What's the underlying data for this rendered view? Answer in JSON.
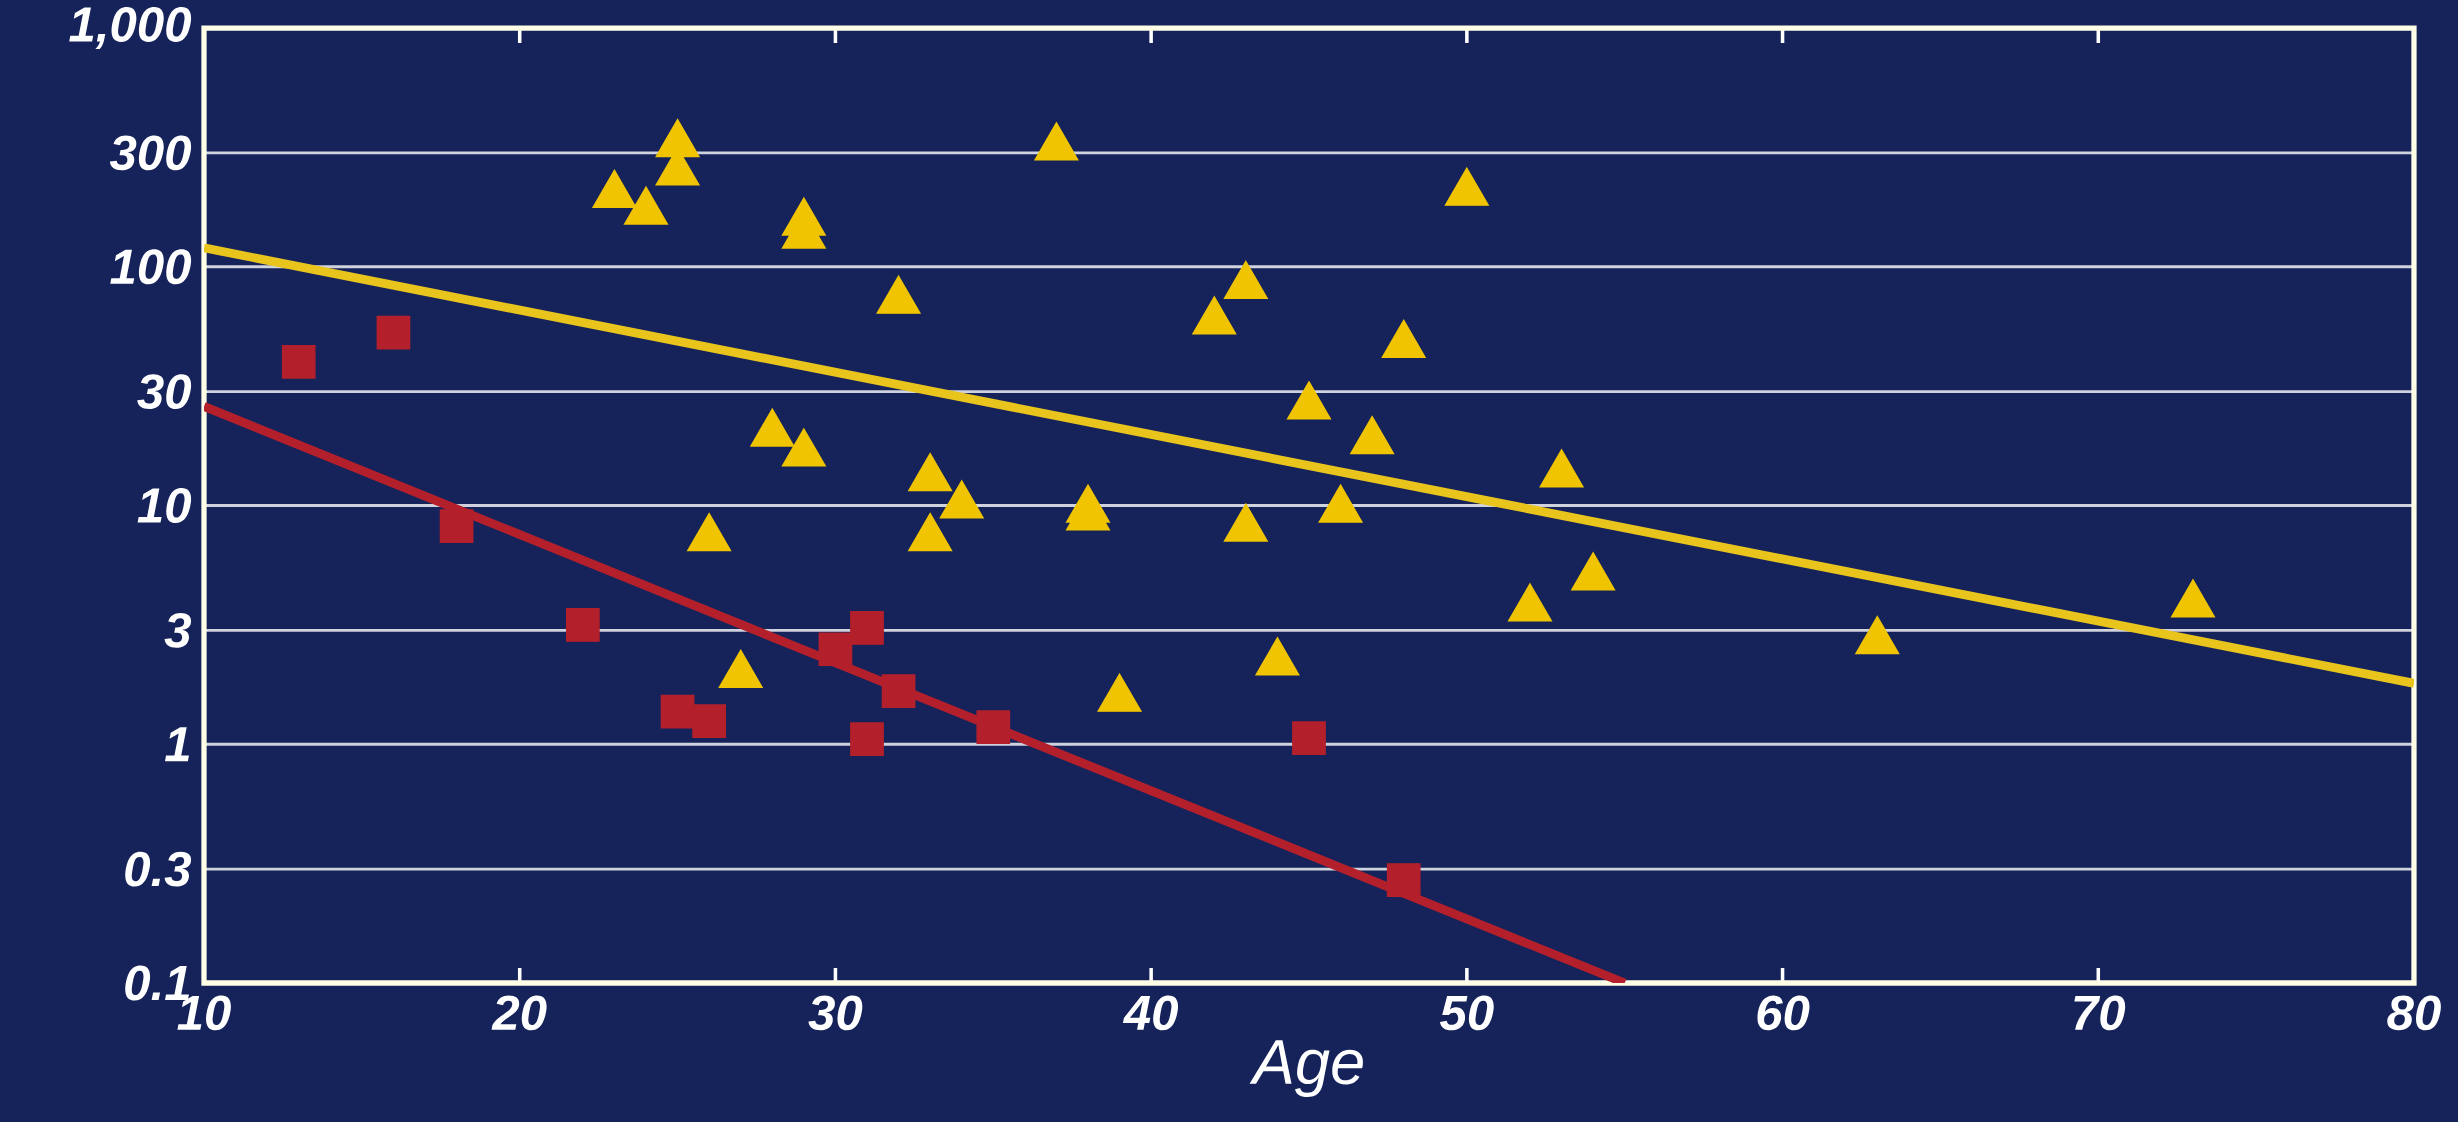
{
  "chart_data": {
    "type": "scatter",
    "xlabel": "Age",
    "xlim": [
      10,
      80
    ],
    "xticks": [
      10,
      20,
      30,
      40,
      50,
      60,
      70,
      80
    ],
    "ylim": [
      0.1,
      1000
    ],
    "yticks": [
      0.1,
      0.3,
      1,
      3,
      10,
      30,
      100,
      300,
      {
        "value": 1000,
        "label": "1,000"
      }
    ],
    "log": "y",
    "grid": "y",
    "series": [
      {
        "marker": "triangle",
        "color": "#f0c400",
        "x": [
          25,
          25,
          23,
          24,
          29,
          29,
          37,
          50,
          32,
          42,
          43,
          48,
          45,
          47,
          28,
          29,
          33,
          34,
          38,
          38,
          53,
          46,
          26,
          33,
          43,
          54,
          52,
          73,
          63,
          44,
          27,
          39
        ],
        "values": [
          326,
          248,
          200,
          170,
          153,
          135,
          316,
          204,
          72,
          59,
          83,
          47,
          26,
          18.6,
          20,
          16.5,
          13,
          10,
          9.6,
          8.9,
          13.5,
          9.6,
          7.3,
          7.3,
          8,
          5,
          3.7,
          3.85,
          2.7,
          2.2,
          1.95,
          1.55
        ]
      },
      {
        "marker": "square",
        "color": "#b3202b",
        "x": [
          13,
          16,
          18,
          22,
          25,
          26,
          30,
          31,
          32,
          31,
          35,
          45,
          48
        ],
        "values": [
          40,
          53,
          8.2,
          3.16,
          1.37,
          1.25,
          2.5,
          3.07,
          1.67,
          1.05,
          1.18,
          1.06,
          0.27
        ]
      },
      {
        "type": "line",
        "color": "#e8c41c",
        "x": [
          10,
          80
        ],
        "values": [
          120,
          1.8
        ]
      },
      {
        "type": "line",
        "color": "#b3202b",
        "x": [
          10,
          55
        ],
        "values": [
          26,
          0.1
        ]
      }
    ]
  }
}
